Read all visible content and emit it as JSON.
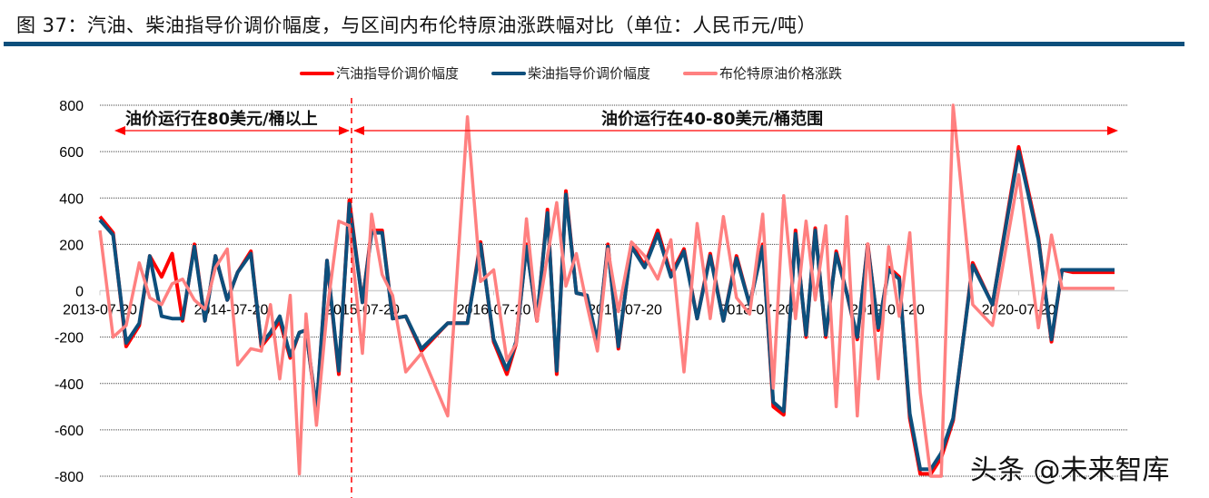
{
  "figure": {
    "title": "图 37：汽油、柴油指导价调价幅度，与区间内布伦特原油涨跌幅对比（单位：人民币元/吨）",
    "watermark": "头条 @未来智库"
  },
  "colors": {
    "gasoline": "#ff0000",
    "diesel": "#0d4f7c",
    "brent": "#ff8080",
    "grid": "#555555",
    "annotation": "#ff0000",
    "title_rule": "#0d4f7c"
  },
  "legend": [
    {
      "label": "汽油指导价调价幅度",
      "color": "#ff0000"
    },
    {
      "label": "柴油指导价调价幅度",
      "color": "#0d4f7c"
    },
    {
      "label": "布伦特原油价格涨跌",
      "color": "#ff8080"
    }
  ],
  "annotations": {
    "left_region": "油价运行在80美元/桶以上",
    "right_region": "油价运行在40-80美元/桶范围"
  },
  "chart_data": {
    "type": "line",
    "title": "汽油、柴油指导价调价幅度，与区间内布伦特原油涨跌幅对比",
    "ylabel": "人民币元/吨",
    "xlabel": "",
    "ylim": [
      -800,
      800
    ],
    "yticks": [
      800,
      600,
      400,
      200,
      0,
      -200,
      -400,
      -600,
      -800
    ],
    "xtick_labels": [
      "2013-07-20",
      "2014-07-20",
      "2015-07-20",
      "2016-07-20",
      "2017-07-20",
      "2018-07-20",
      "2019-07-20",
      "2020-07-20"
    ],
    "grid": true,
    "legend_position": "top",
    "x": [
      2013.55,
      2013.65,
      2013.75,
      2013.85,
      2013.93,
      2014.02,
      2014.1,
      2014.18,
      2014.27,
      2014.35,
      2014.43,
      2014.52,
      2014.6,
      2014.7,
      2014.78,
      2014.85,
      2014.92,
      2015.0,
      2015.07,
      2015.12,
      2015.2,
      2015.28,
      2015.37,
      2015.45,
      2015.55,
      2015.62,
      2015.7,
      2015.78,
      2015.88,
      2016.0,
      2016.2,
      2016.35,
      2016.45,
      2016.55,
      2016.65,
      2016.72,
      2016.8,
      2016.88,
      2016.96,
      2017.03,
      2017.1,
      2017.18,
      2017.26,
      2017.34,
      2017.42,
      2017.5,
      2017.6,
      2017.7,
      2017.8,
      2017.9,
      2018.0,
      2018.1,
      2018.2,
      2018.3,
      2018.4,
      2018.5,
      2018.6,
      2018.68,
      2018.76,
      2018.85,
      2018.93,
      2019.0,
      2019.08,
      2019.16,
      2019.24,
      2019.32,
      2019.4,
      2019.48,
      2019.56,
      2019.64,
      2019.72,
      2019.8,
      2019.88,
      2019.96,
      2020.05,
      2020.2,
      2020.35,
      2020.55,
      2020.7,
      2020.8,
      2020.88,
      2020.96,
      2021.04,
      2021.12,
      2021.2,
      2021.28
    ],
    "series": [
      {
        "name": "汽油指导价调价幅度",
        "values": [
          320,
          250,
          -240,
          -150,
          150,
          60,
          160,
          -130,
          200,
          -130,
          150,
          -40,
          80,
          170,
          -240,
          -190,
          -130,
          -290,
          -180,
          -170,
          -520,
          130,
          -360,
          390,
          -50,
          260,
          260,
          -120,
          -110,
          -260,
          -140,
          -140,
          210,
          -220,
          -360,
          -230,
          200,
          -130,
          350,
          -360,
          430,
          -10,
          -20,
          -230,
          200,
          -250,
          200,
          110,
          260,
          70,
          180,
          -120,
          160,
          -130,
          150,
          -60,
          200,
          -500,
          -535,
          260,
          -200,
          270,
          -200,
          170,
          -10,
          -210,
          200,
          -170,
          100,
          60,
          -550,
          -790,
          -790,
          -720,
          -560,
          120,
          -60,
          620,
          230,
          -220,
          90,
          80,
          80,
          80,
          80,
          80
        ]
      },
      {
        "name": "柴油指导价调价幅度",
        "values": [
          305,
          240,
          -225,
          -140,
          150,
          -110,
          -120,
          -120,
          190,
          -130,
          150,
          -40,
          80,
          160,
          -230,
          -180,
          -110,
          -280,
          -180,
          -170,
          -510,
          130,
          -345,
          375,
          -50,
          250,
          250,
          -120,
          -110,
          -250,
          -140,
          -140,
          200,
          -210,
          -340,
          -220,
          190,
          -120,
          335,
          -345,
          415,
          -10,
          -20,
          -220,
          190,
          -240,
          190,
          100,
          245,
          60,
          170,
          -120,
          150,
          -130,
          140,
          -60,
          190,
          -480,
          -520,
          245,
          -190,
          260,
          -190,
          160,
          -10,
          -200,
          190,
          -160,
          90,
          50,
          -530,
          -770,
          -770,
          -700,
          -550,
          110,
          -60,
          600,
          220,
          -210,
          90,
          90,
          90,
          90,
          90,
          90
        ]
      },
      {
        "name": "布伦特原油价格涨跌",
        "values": [
          260,
          -200,
          -150,
          120,
          -30,
          -60,
          30,
          50,
          -40,
          -80,
          100,
          180,
          -320,
          -250,
          -260,
          -60,
          -380,
          -20,
          -790,
          -100,
          -580,
          -90,
          300,
          280,
          -270,
          330,
          70,
          -20,
          -350,
          -270,
          -540,
          750,
          40,
          90,
          -300,
          -230,
          310,
          -130,
          150,
          380,
          20,
          160,
          -60,
          -260,
          180,
          -90,
          210,
          150,
          50,
          220,
          -350,
          290,
          -120,
          320,
          -30,
          -100,
          330,
          -420,
          410,
          -120,
          300,
          -40,
          280,
          -500,
          320,
          -540,
          200,
          -380,
          190,
          -110,
          250,
          -440,
          -800,
          -800,
          800,
          -60,
          -150,
          500,
          -160,
          240,
          10,
          10,
          10,
          10,
          10,
          10
        ]
      }
    ]
  }
}
